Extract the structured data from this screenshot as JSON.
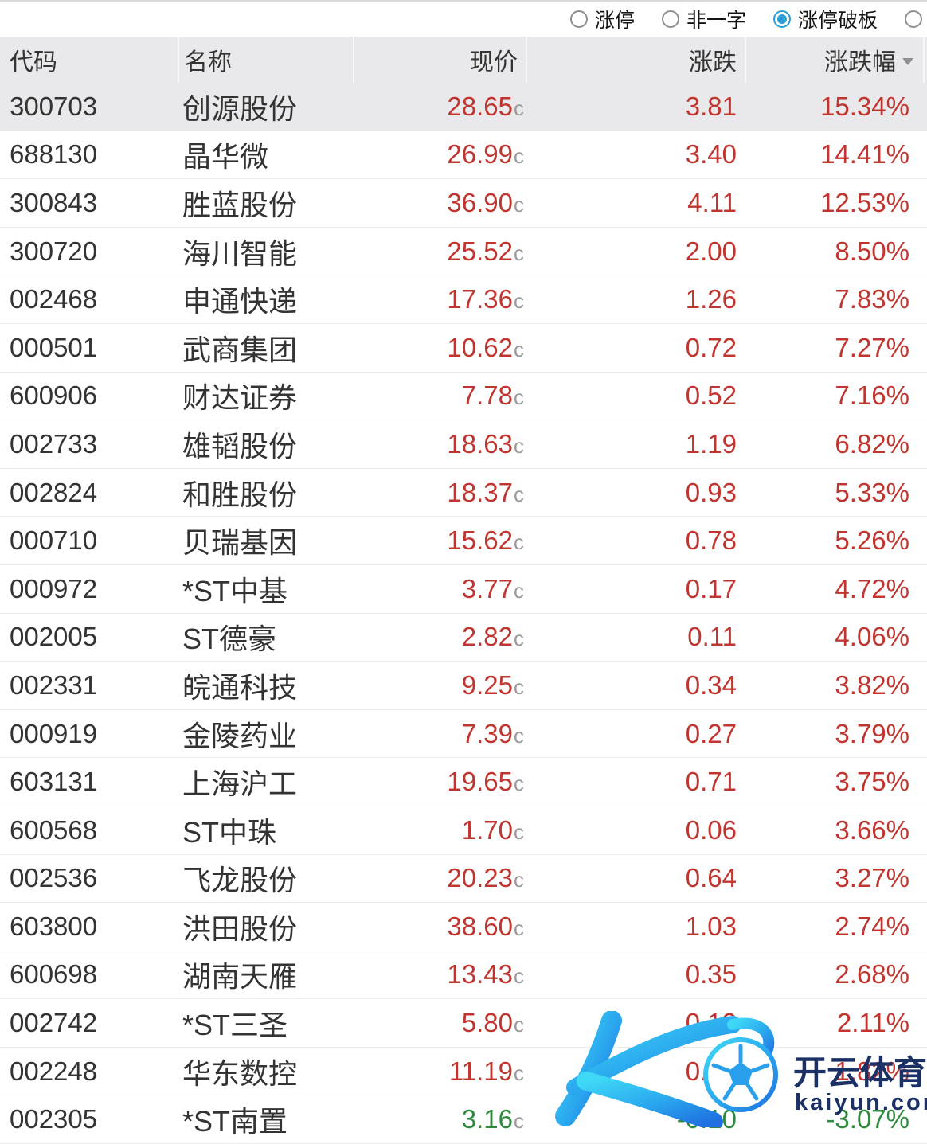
{
  "filter_bar": {
    "options": [
      {
        "label": "涨停",
        "selected": false
      },
      {
        "label": "非一字",
        "selected": false
      },
      {
        "label": "涨停破板",
        "selected": true
      },
      {
        "label": "",
        "selected": false
      }
    ]
  },
  "table": {
    "columns": {
      "code": "代码",
      "name": "名称",
      "price": "现价",
      "change": "涨跌",
      "change_pct": "涨跌幅"
    },
    "sort": {
      "column": "涨跌幅",
      "direction": "desc"
    },
    "price_unit_suffix": "c",
    "rows": [
      {
        "code": "300703",
        "name": "创源股份",
        "price": "28.65",
        "change": "3.81",
        "change_pct": "15.34%",
        "trend": "up",
        "selected": true
      },
      {
        "code": "688130",
        "name": "晶华微",
        "price": "26.99",
        "change": "3.40",
        "change_pct": "14.41%",
        "trend": "up",
        "selected": false
      },
      {
        "code": "300843",
        "name": "胜蓝股份",
        "price": "36.90",
        "change": "4.11",
        "change_pct": "12.53%",
        "trend": "up",
        "selected": false
      },
      {
        "code": "300720",
        "name": "海川智能",
        "price": "25.52",
        "change": "2.00",
        "change_pct": "8.50%",
        "trend": "up",
        "selected": false
      },
      {
        "code": "002468",
        "name": "申通快递",
        "price": "17.36",
        "change": "1.26",
        "change_pct": "7.83%",
        "trend": "up",
        "selected": false
      },
      {
        "code": "000501",
        "name": "武商集团",
        "price": "10.62",
        "change": "0.72",
        "change_pct": "7.27%",
        "trend": "up",
        "selected": false
      },
      {
        "code": "600906",
        "name": "财达证券",
        "price": "7.78",
        "change": "0.52",
        "change_pct": "7.16%",
        "trend": "up",
        "selected": false
      },
      {
        "code": "002733",
        "name": "雄韬股份",
        "price": "18.63",
        "change": "1.19",
        "change_pct": "6.82%",
        "trend": "up",
        "selected": false
      },
      {
        "code": "002824",
        "name": "和胜股份",
        "price": "18.37",
        "change": "0.93",
        "change_pct": "5.33%",
        "trend": "up",
        "selected": false
      },
      {
        "code": "000710",
        "name": "贝瑞基因",
        "price": "15.62",
        "change": "0.78",
        "change_pct": "5.26%",
        "trend": "up",
        "selected": false
      },
      {
        "code": "000972",
        "name": "*ST中基",
        "price": "3.77",
        "change": "0.17",
        "change_pct": "4.72%",
        "trend": "up",
        "selected": false
      },
      {
        "code": "002005",
        "name": "ST德豪",
        "price": "2.82",
        "change": "0.11",
        "change_pct": "4.06%",
        "trend": "up",
        "selected": false
      },
      {
        "code": "002331",
        "name": "皖通科技",
        "price": "9.25",
        "change": "0.34",
        "change_pct": "3.82%",
        "trend": "up",
        "selected": false
      },
      {
        "code": "000919",
        "name": "金陵药业",
        "price": "7.39",
        "change": "0.27",
        "change_pct": "3.79%",
        "trend": "up",
        "selected": false
      },
      {
        "code": "603131",
        "name": "上海沪工",
        "price": "19.65",
        "change": "0.71",
        "change_pct": "3.75%",
        "trend": "up",
        "selected": false
      },
      {
        "code": "600568",
        "name": "ST中珠",
        "price": "1.70",
        "change": "0.06",
        "change_pct": "3.66%",
        "trend": "up",
        "selected": false
      },
      {
        "code": "002536",
        "name": "飞龙股份",
        "price": "20.23",
        "change": "0.64",
        "change_pct": "3.27%",
        "trend": "up",
        "selected": false
      },
      {
        "code": "603800",
        "name": "洪田股份",
        "price": "38.60",
        "change": "1.03",
        "change_pct": "2.74%",
        "trend": "up",
        "selected": false
      },
      {
        "code": "600698",
        "name": "湖南天雁",
        "price": "13.43",
        "change": "0.35",
        "change_pct": "2.68%",
        "trend": "up",
        "selected": false
      },
      {
        "code": "002742",
        "name": "*ST三圣",
        "price": "5.80",
        "change": "0.12",
        "change_pct": "2.11%",
        "trend": "up",
        "selected": false
      },
      {
        "code": "002248",
        "name": "华东数控",
        "price": "11.19",
        "change": "0.20",
        "change_pct": "1.82%",
        "trend": "up",
        "selected": false
      },
      {
        "code": "002305",
        "name": "*ST南置",
        "price": "3.16",
        "change": "-0.10",
        "change_pct": "-3.07%",
        "trend": "down",
        "selected": false
      }
    ]
  },
  "watermark": {
    "brand_cn": "开云体育",
    "brand_url": "kaiyun.com",
    "logo": "k-football-logo"
  },
  "colors": {
    "up": "#c0352f",
    "down": "#2e8b3c",
    "radio_accent": "#2b9fd8",
    "unit_gray": "#9a9a9a",
    "watermark_navy": "#1b3166",
    "header_bg": "#e9e9eb"
  }
}
